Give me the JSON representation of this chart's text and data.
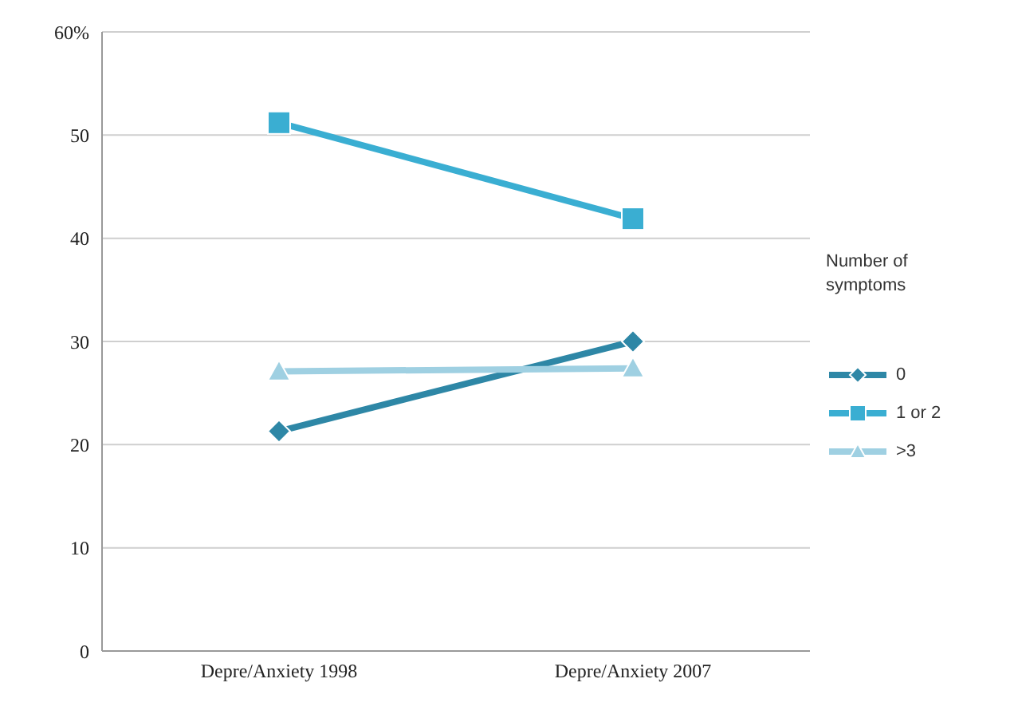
{
  "chart_data": {
    "type": "line",
    "categories": [
      "Depre/Anxiety 1998",
      "Depre/Anxiety 2007"
    ],
    "series": [
      {
        "name": "0",
        "color": "#2e87a6",
        "marker": "diamond",
        "values": [
          21.3,
          30.0
        ]
      },
      {
        "name": "1 or 2",
        "color": "#3aaed2",
        "marker": "square",
        "values": [
          51.2,
          41.9
        ]
      },
      {
        "name": ">3",
        "color": "#9fd0e2",
        "marker": "triangle",
        "values": [
          27.1,
          27.4
        ]
      }
    ],
    "ylim": [
      0,
      60
    ],
    "yticks": [
      0,
      10,
      20,
      30,
      40,
      50,
      {
        "value": 60,
        "label": "60%"
      }
    ],
    "grid": "y",
    "legend": "right",
    "legend_title": "Number of symptoms",
    "line_style": "solid"
  }
}
